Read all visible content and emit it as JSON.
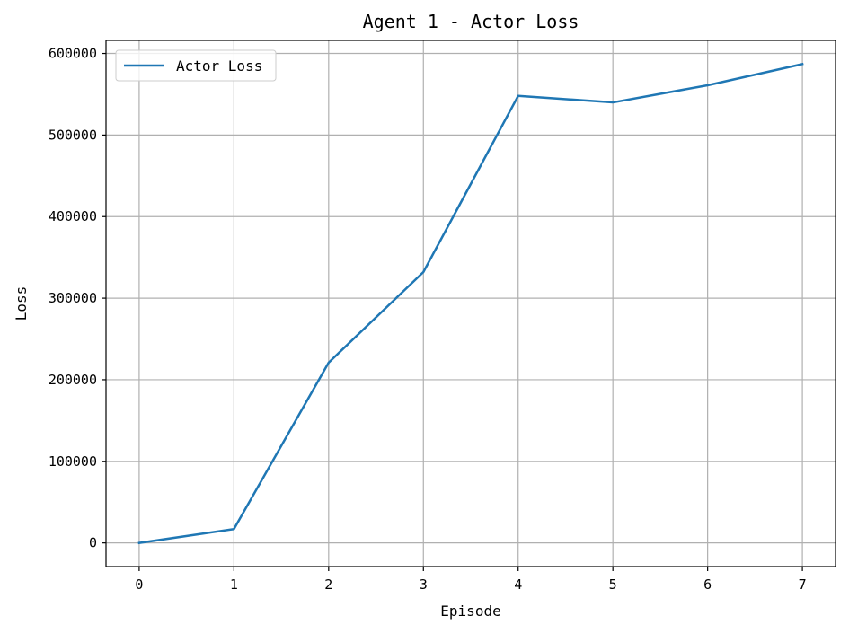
{
  "chart_data": {
    "type": "line",
    "title": "Agent 1 - Actor Loss",
    "xlabel": "Episode",
    "ylabel": "Loss",
    "x": [
      0,
      1,
      2,
      3,
      4,
      5,
      6,
      7
    ],
    "series": [
      {
        "name": "Actor Loss",
        "color": "#1f77b4",
        "values": [
          0,
          17000,
          221000,
          332000,
          548000,
          540000,
          561000,
          587000
        ]
      }
    ],
    "xlim": [
      -0.35,
      7.35
    ],
    "ylim": [
      -29000,
      616000
    ],
    "xticks": [
      0,
      1,
      2,
      3,
      4,
      5,
      6,
      7
    ],
    "yticks": [
      0,
      100000,
      200000,
      300000,
      400000,
      500000,
      600000
    ],
    "grid": true,
    "legend_position": "top-left"
  }
}
